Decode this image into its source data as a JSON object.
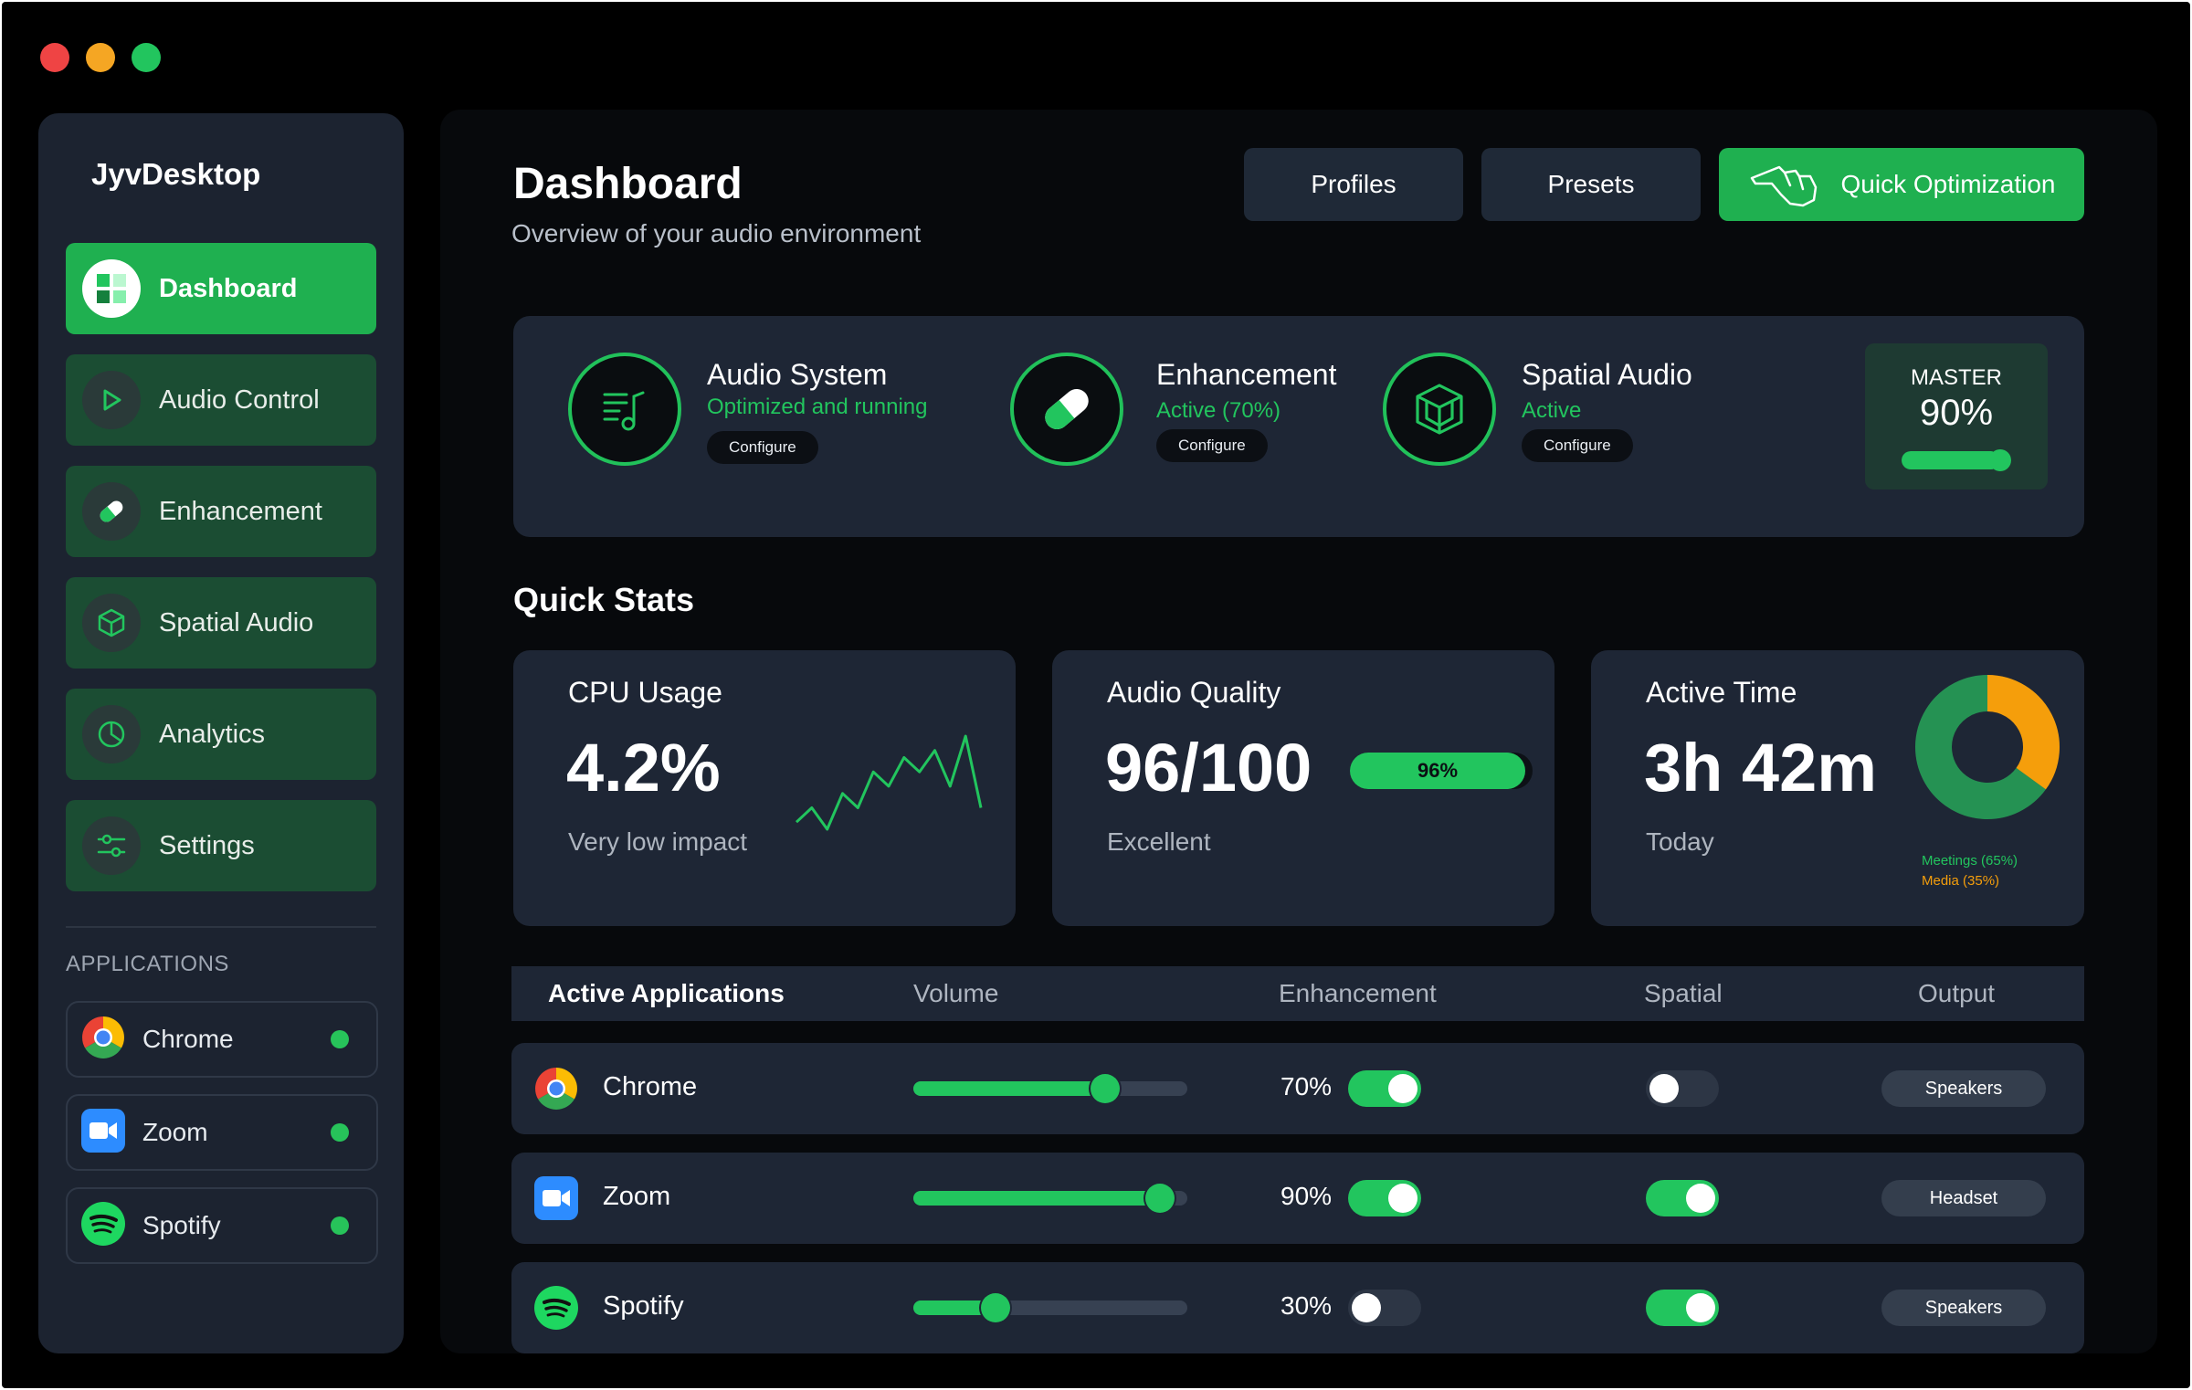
{
  "window_controls": [
    {
      "name": "close",
      "color": "#ef4444"
    },
    {
      "name": "minimize",
      "color": "#f5a623"
    },
    {
      "name": "maximize",
      "color": "#22c55e"
    }
  ],
  "sidebar": {
    "brand": "JyvDesktop",
    "nav": [
      {
        "label": "Dashboard",
        "icon": "dashboard-grid-icon",
        "active": true
      },
      {
        "label": "Audio Control",
        "icon": "play-icon",
        "active": false
      },
      {
        "label": "Enhancement",
        "icon": "pill-icon",
        "active": false
      },
      {
        "label": "Spatial Audio",
        "icon": "cube-icon",
        "active": false
      },
      {
        "label": "Analytics",
        "icon": "pie-chart-icon",
        "active": false
      },
      {
        "label": "Settings",
        "icon": "sliders-icon",
        "active": false
      }
    ],
    "applications_heading": "APPLICATIONS",
    "applications": [
      {
        "name": "Chrome",
        "icon": "chrome-logo-icon",
        "status": "online"
      },
      {
        "name": "Zoom",
        "icon": "zoom-logo-icon",
        "status": "online"
      },
      {
        "name": "Spotify",
        "icon": "spotify-logo-icon",
        "status": "online"
      }
    ]
  },
  "header": {
    "title": "Dashboard",
    "subtitle": "Overview of your audio environment",
    "buttons": {
      "profiles": "Profiles",
      "presets": "Presets",
      "quick_optimization": "Quick Optimization"
    }
  },
  "status_panel": {
    "items": [
      {
        "title": "Audio System",
        "status": "Optimized and running",
        "button": "Configure",
        "icon": "music-list-icon"
      },
      {
        "title": "Enhancement",
        "status": "Active (70%)",
        "button": "Configure",
        "icon": "pill-icon"
      },
      {
        "title": "Spatial Audio",
        "status": "Active",
        "button": "Configure",
        "icon": "cube-icon"
      }
    ],
    "master": {
      "label": "MASTER",
      "value": "90%",
      "level": 0.9
    }
  },
  "quick_stats": {
    "title": "Quick Stats",
    "cpu": {
      "label": "CPU Usage",
      "value": "4.2%",
      "sub": "Very low impact",
      "trend": [
        2,
        3,
        1.5,
        4,
        3,
        5.5,
        4.5,
        6.5,
        5.5,
        7,
        4.5,
        8,
        3
      ]
    },
    "quality": {
      "label": "Audio Quality",
      "value": "96/100",
      "bar_label": "96%",
      "bar_level": 0.96,
      "sub": "Excellent"
    },
    "active_time": {
      "label": "Active Time",
      "value": "3h 42m",
      "sub": "Today",
      "legend": [
        {
          "label": "Meetings (65%)",
          "share": 65,
          "color": "#22c55e"
        },
        {
          "label": "Media (35%)",
          "share": 35,
          "color": "#f59e0b"
        }
      ]
    }
  },
  "app_table": {
    "headers": {
      "app": "Active Applications",
      "volume": "Volume",
      "enhancement": "Enhancement",
      "spatial": "Spatial",
      "output": "Output"
    },
    "rows": [
      {
        "name": "Chrome",
        "icon": "chrome-logo-icon",
        "volume": 0.7,
        "enhancement": "70%",
        "enhancement_on": true,
        "spatial_on": false,
        "output": "Speakers"
      },
      {
        "name": "Zoom",
        "icon": "zoom-logo-icon",
        "volume": 0.9,
        "enhancement": "90%",
        "enhancement_on": true,
        "spatial_on": true,
        "output": "Headset"
      },
      {
        "name": "Spotify",
        "icon": "spotify-logo-icon",
        "volume": 0.3,
        "enhancement": "30%",
        "enhancement_on": false,
        "spatial_on": true,
        "output": "Speakers"
      }
    ]
  }
}
